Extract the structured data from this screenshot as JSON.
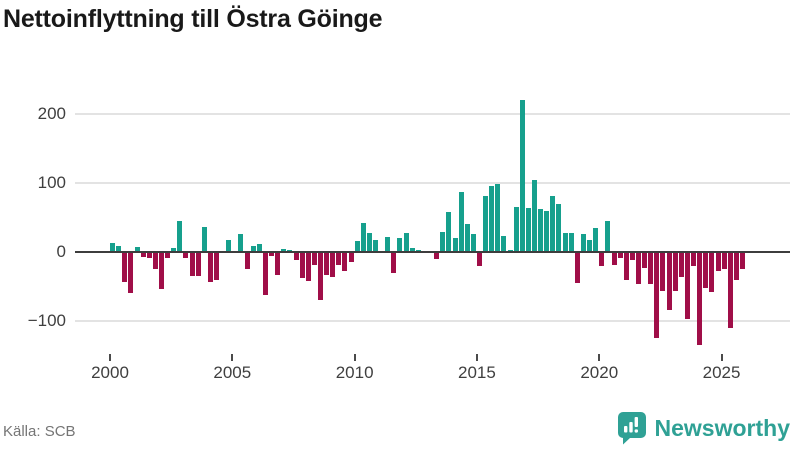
{
  "title": "Nettoinflyttning till Östra Göinge",
  "source": "Källa: SCB",
  "logo": {
    "text": "Newsworthy"
  },
  "chart_data": {
    "type": "bar",
    "title": "Nettoinflyttning till Östra Göinge",
    "x_unit": "quarter",
    "x_start_year": 2000,
    "values": [
      13,
      9,
      -44,
      -60,
      8,
      -7,
      -9,
      -24,
      -54,
      -9,
      6,
      45,
      -8,
      -34,
      -35,
      36,
      -43,
      -40,
      0,
      17,
      0,
      26,
      -25,
      9,
      12,
      -62,
      -6,
      -33,
      4,
      3,
      -12,
      -38,
      -42,
      -19,
      -70,
      -33,
      -36,
      -19,
      -27,
      -15,
      16,
      42,
      27,
      17,
      0,
      22,
      -30,
      21,
      28,
      6,
      3,
      0,
      0,
      -10,
      29,
      58,
      20,
      87,
      41,
      26,
      -20,
      81,
      96,
      99,
      23,
      3,
      65,
      220,
      64,
      104,
      62,
      59,
      81,
      70,
      27,
      27,
      -45,
      26,
      17,
      35,
      -20,
      45,
      -19,
      -9,
      -41,
      -12,
      -46,
      -23,
      -46,
      -125,
      -57,
      -84,
      -57,
      -36,
      -97,
      -20,
      -134,
      -52,
      -58,
      -28,
      -25,
      -110,
      -41,
      -25
    ],
    "xticks": [
      2000,
      2005,
      2010,
      2015,
      2020,
      2025
    ],
    "yticks": [
      {
        "value": 200,
        "label": "200"
      },
      {
        "value": 100,
        "label": "100"
      },
      {
        "value": 0,
        "label": "0"
      },
      {
        "value": -100,
        "label": "−100"
      }
    ],
    "ylim": [
      -140,
      230
    ],
    "grid": true,
    "legend": "none",
    "colors": {
      "positive": "#16a08d",
      "negative": "#a00e48"
    },
    "source": "Källa: SCB"
  }
}
